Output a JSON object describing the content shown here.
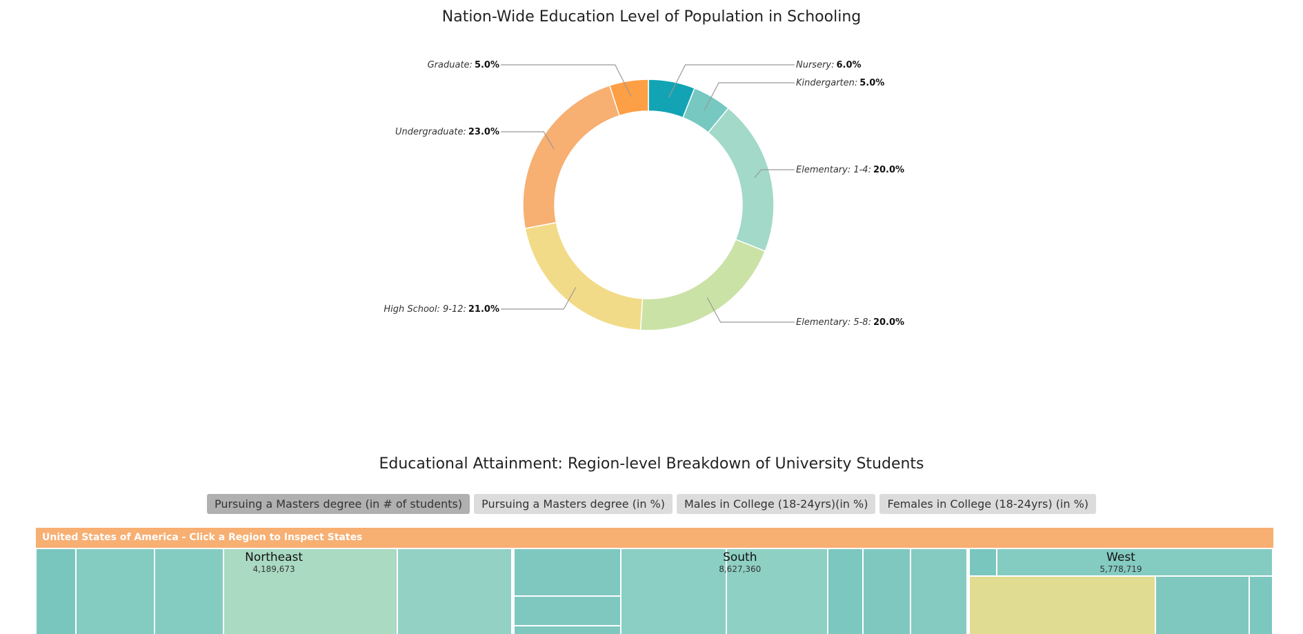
{
  "chart_data": {
    "type": "donut",
    "title": "Nation-Wide Education Level of Population in Schooling",
    "categories": [
      "Nursery:",
      "Kindergarten:",
      "Elementary: 1-4:",
      "Elementary: 5-8:",
      "High School: 9-12:",
      "Undergraduate:",
      "Graduate:"
    ],
    "values": [
      6,
      5,
      20,
      20,
      21,
      23,
      5
    ],
    "value_labels": [
      "6.0%",
      "5.0%",
      "20.0%",
      "20.0%",
      "21.0%",
      "23.0%",
      "5.0%"
    ],
    "colors": [
      "#12a4b4",
      "#76c8c0",
      "#a2d9c8",
      "#cbe2a6",
      "#f2db88",
      "#f7af72",
      "#fd9f45"
    ]
  },
  "treemap_section": {
    "title": "Educational Attainment: Region-level Breakdown of University Students",
    "buttons": [
      "Pursuing a Masters degree (in # of students)",
      "Pursuing a Masters degree (in %)",
      "Males in College (18-24yrs)(in %)",
      "Females in College (18-24yrs) (in %)"
    ],
    "header": "United States of America - Click a Region to Inspect States",
    "regions": [
      {
        "name": "Northeast",
        "value": "4,189,673"
      },
      {
        "name": "South",
        "value": "8,627,360"
      },
      {
        "name": "West",
        "value": "5,778,719"
      }
    ]
  }
}
